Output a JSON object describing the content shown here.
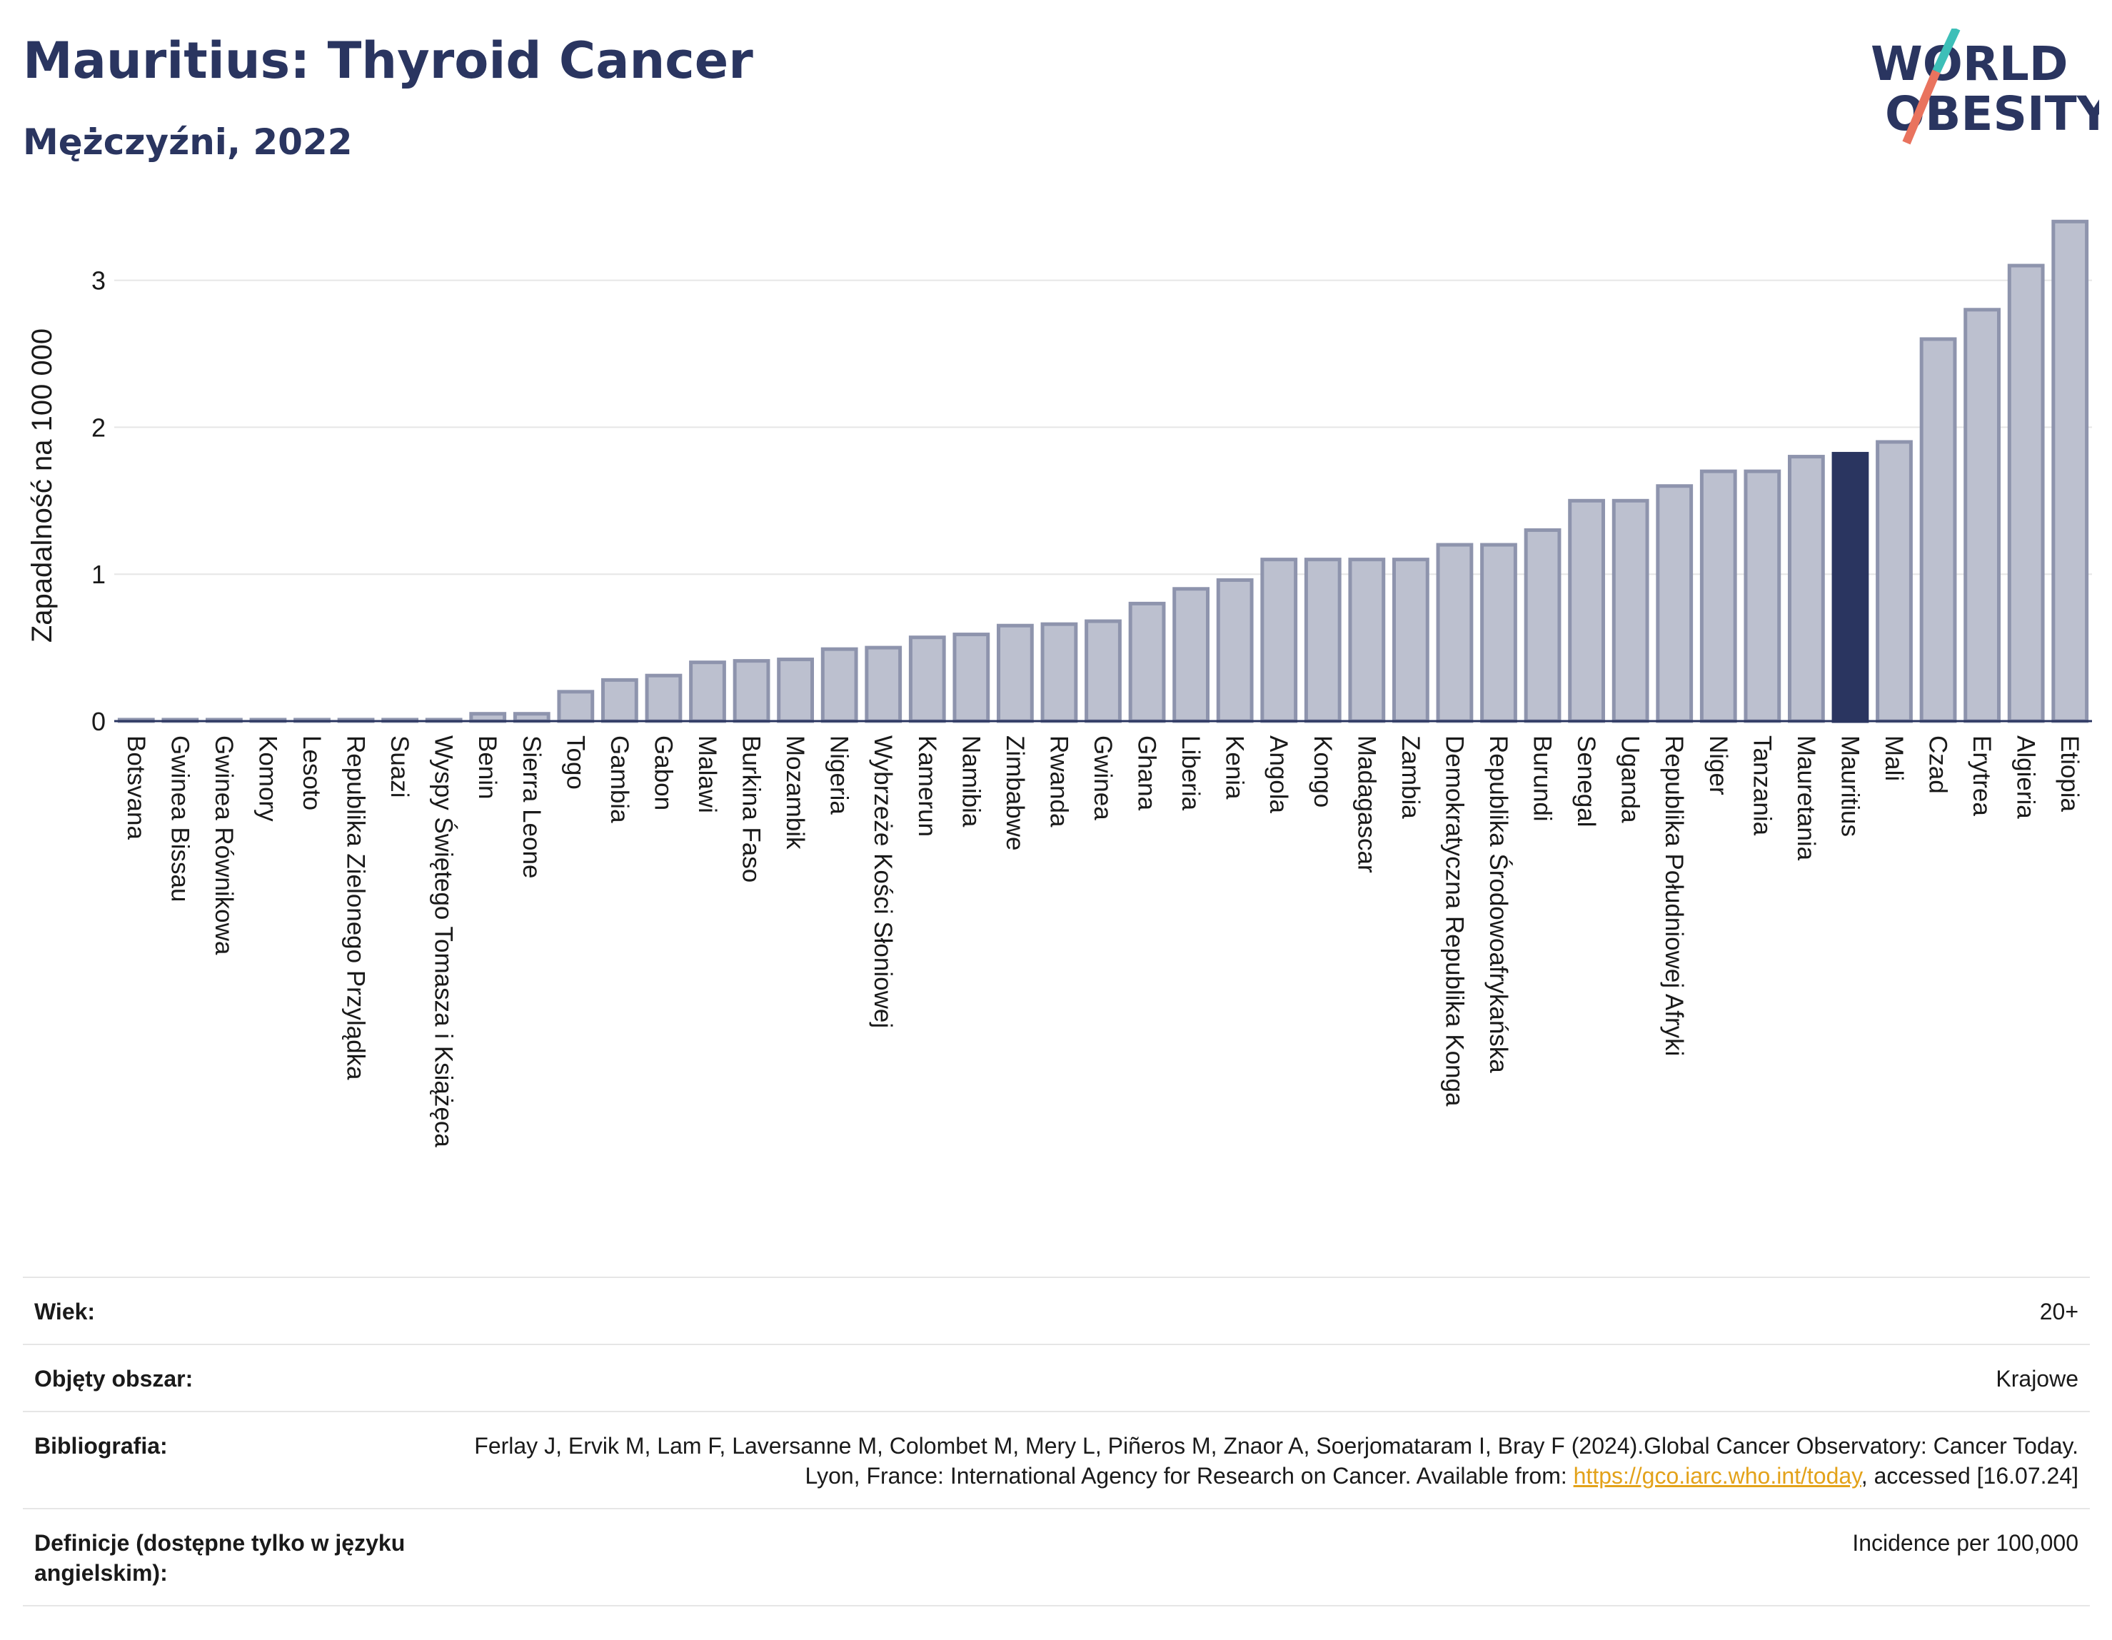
{
  "header": {
    "title": "Mauritius: Thyroid Cancer",
    "subtitle": "Mężczyźni, 2022"
  },
  "logo": {
    "line1": "WORLD",
    "line2": "OBESITY",
    "accent_color": "#3dbfb8",
    "slash_color": "#e9735e"
  },
  "colors": {
    "bar": "#bcc0cf",
    "bar_edge": "#8e94ad",
    "highlight": "#2a3560",
    "axis": "#2a3560",
    "grid": "#e6e6e6"
  },
  "chart_data": {
    "type": "bar",
    "ylabel": "Zapadalność na 100 000",
    "ylim": [
      0,
      3.45
    ],
    "yticks": [
      0,
      1,
      2,
      3
    ],
    "grid": true,
    "highlight": "Mauritius",
    "categories": [
      "Botsvana",
      "Gwinea Bissau",
      "Gwinea Równikowa",
      "Komory",
      "Lesoto",
      "Republika Zielonego Przylądka",
      "Suazi",
      "Wyspy Świętego Tomasza i Książęca",
      "Benin",
      "Sierra Leone",
      "Togo",
      "Gambia",
      "Gabon",
      "Malawi",
      "Burkina Faso",
      "Mozambik",
      "Nigeria",
      "Wybrzeże Kości Słoniowej",
      "Kamerun",
      "Namibia",
      "Zimbabwe",
      "Rwanda",
      "Gwinea",
      "Ghana",
      "Liberia",
      "Kenia",
      "Angola",
      "Kongo",
      "Madagascar",
      "Zambia",
      "Demokratyczna Republika Konga",
      "Republika Środowoafrykańska",
      "Burundi",
      "Senegal",
      "Uganda",
      "Republika Południowej Afryki",
      "Niger",
      "Tanzania",
      "Mauretania",
      "Mauritius",
      "Mali",
      "Czad",
      "Erytrea",
      "Algieria",
      "Etiopia"
    ],
    "values": [
      0.01,
      0.01,
      0.01,
      0.01,
      0.01,
      0.01,
      0.01,
      0.01,
      0.05,
      0.05,
      0.2,
      0.28,
      0.31,
      0.4,
      0.41,
      0.42,
      0.49,
      0.5,
      0.57,
      0.59,
      0.65,
      0.66,
      0.68,
      0.8,
      0.9,
      0.96,
      1.1,
      1.1,
      1.1,
      1.1,
      1.2,
      1.2,
      1.3,
      1.5,
      1.5,
      1.6,
      1.7,
      1.7,
      1.8,
      1.82,
      1.9,
      2.6,
      2.8,
      3.1,
      3.4
    ]
  },
  "meta": {
    "rows": [
      {
        "label": "Wiek:",
        "value": "20+"
      },
      {
        "label": "Objęty obszar:",
        "value": "Krajowe"
      },
      {
        "label": "Definicje (dostępne tylko w języku angielskim):",
        "value": "Incidence per 100,000"
      }
    ],
    "biblio": {
      "label": "Bibliografia:",
      "text1": "Ferlay J, Ervik M, Lam F, Laversanne M, Colombet M, Mery L, Piñeros M, Znaor A, Soerjomataram I, Bray F (2024).Global Cancer Observatory: Cancer Today. Lyon, France: International Agency for Research on Cancer. Available from: ",
      "link": "https://gco.iarc.who.int/today",
      "text2": ", accessed [16.07.24]"
    }
  }
}
